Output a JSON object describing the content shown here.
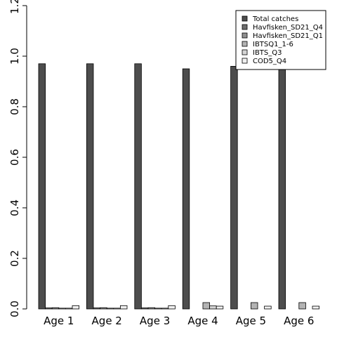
{
  "chart_data": {
    "type": "bar",
    "categories": [
      "Age 1",
      "Age 2",
      "Age 3",
      "Age 4",
      "Age 5",
      "Age 6"
    ],
    "series": [
      {
        "name": "Total catches",
        "color": "#4d4d4d",
        "values": [
          0.97,
          0.97,
          0.97,
          0.95,
          0.96,
          0.96
        ]
      },
      {
        "name": "Havfisken_SD21_Q4",
        "color": "#6e6e6e",
        "values": [
          0.004,
          0.004,
          0.004,
          0.0,
          0.0,
          0.0
        ]
      },
      {
        "name": "Havfisken_SD21_Q1",
        "color": "#8f8f8f",
        "values": [
          0.005,
          0.005,
          0.005,
          0.0,
          0.0,
          0.0
        ]
      },
      {
        "name": "IBTSQ1_1-6",
        "color": "#b3b3b3",
        "values": [
          0.003,
          0.003,
          0.003,
          0.025,
          0.025,
          0.025
        ]
      },
      {
        "name": "IBTS_Q3",
        "color": "#d4d4d4",
        "values": [
          0.003,
          0.003,
          0.003,
          0.012,
          0.0,
          0.0
        ]
      },
      {
        "name": "COD5_Q4",
        "color": "#f0f0f0",
        "values": [
          0.013,
          0.013,
          0.013,
          0.011,
          0.011,
          0.011
        ]
      }
    ],
    "yticks": [
      "0.0",
      "0.2",
      "0.4",
      "0.6",
      "0.8",
      "1.0",
      "1.2"
    ],
    "ylim": [
      0,
      1.2
    ],
    "legend_position": "top-right",
    "grid": false
  }
}
